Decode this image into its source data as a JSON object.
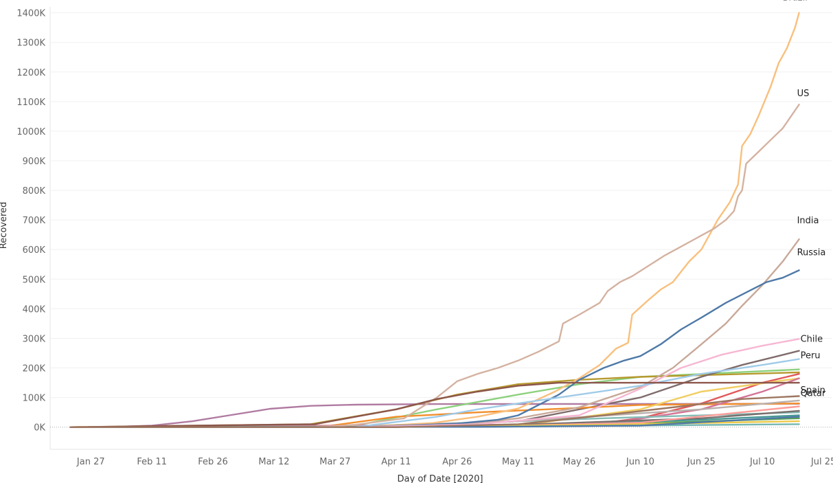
{
  "chart_data": {
    "type": "line",
    "title": "",
    "xlabel": "Day of Date [2020]",
    "ylabel": "Recovered",
    "x_ticks": [
      "Jan 27",
      "Feb 11",
      "Feb 26",
      "Mar 12",
      "Mar 27",
      "Apr 11",
      "Apr 26",
      "May 11",
      "May 26",
      "Jun 10",
      "Jun 25",
      "Jul 10",
      "Jul 25"
    ],
    "x_tick_dates": [
      "2020-01-27",
      "2020-02-11",
      "2020-02-26",
      "2020-03-12",
      "2020-03-27",
      "2020-04-11",
      "2020-04-26",
      "2020-05-11",
      "2020-05-26",
      "2020-06-10",
      "2020-06-25",
      "2020-07-10",
      "2020-07-25"
    ],
    "xlim": [
      "2020-01-17",
      "2020-07-27"
    ],
    "y_ticks": [
      "0K",
      "100K",
      "200K",
      "300K",
      "400K",
      "500K",
      "600K",
      "700K",
      "800K",
      "900K",
      "1000K",
      "1100K",
      "1200K",
      "1300K",
      "1400K"
    ],
    "ylim": [
      -75000,
      1420000
    ],
    "grid": true,
    "legend": "none",
    "series": [
      {
        "name": "Brazil",
        "color": "#f9bf7c",
        "end_label": true,
        "points": [
          [
            "2020-01-22",
            0
          ],
          [
            "2020-04-01",
            0
          ],
          [
            "2020-04-20",
            14000
          ],
          [
            "2020-05-01",
            35000
          ],
          [
            "2020-05-11",
            63000
          ],
          [
            "2020-05-20",
            120000
          ],
          [
            "2020-05-26",
            165000
          ],
          [
            "2020-05-31",
            210000
          ],
          [
            "2020-06-04",
            265000
          ],
          [
            "2020-06-07",
            285000
          ],
          [
            "2020-06-08",
            380000
          ],
          [
            "2020-06-12",
            430000
          ],
          [
            "2020-06-15",
            465000
          ],
          [
            "2020-06-18",
            490000
          ],
          [
            "2020-06-20",
            525000
          ],
          [
            "2020-06-22",
            560000
          ],
          [
            "2020-06-25",
            600000
          ],
          [
            "2020-06-27",
            650000
          ],
          [
            "2020-06-29",
            700000
          ],
          [
            "2020-07-02",
            760000
          ],
          [
            "2020-07-04",
            820000
          ],
          [
            "2020-07-05",
            950000
          ],
          [
            "2020-07-07",
            990000
          ],
          [
            "2020-07-09",
            1050000
          ],
          [
            "2020-07-12",
            1150000
          ],
          [
            "2020-07-14",
            1230000
          ],
          [
            "2020-07-16",
            1280000
          ],
          [
            "2020-07-18",
            1350000
          ],
          [
            "2020-07-19",
            1400000
          ]
        ]
      },
      {
        "name": "US",
        "color": "#d4b2a1",
        "end_label": true,
        "points": [
          [
            "2020-01-22",
            0
          ],
          [
            "2020-03-22",
            0
          ],
          [
            "2020-04-01",
            8000
          ],
          [
            "2020-04-13",
            30000
          ],
          [
            "2020-04-21",
            100000
          ],
          [
            "2020-04-26",
            155000
          ],
          [
            "2020-05-01",
            180000
          ],
          [
            "2020-05-06",
            200000
          ],
          [
            "2020-05-11",
            225000
          ],
          [
            "2020-05-16",
            255000
          ],
          [
            "2020-05-21",
            290000
          ],
          [
            "2020-05-22",
            350000
          ],
          [
            "2020-05-26",
            380000
          ],
          [
            "2020-05-31",
            420000
          ],
          [
            "2020-06-02",
            460000
          ],
          [
            "2020-06-05",
            490000
          ],
          [
            "2020-06-08",
            510000
          ],
          [
            "2020-06-12",
            545000
          ],
          [
            "2020-06-16",
            580000
          ],
          [
            "2020-06-20",
            610000
          ],
          [
            "2020-06-24",
            640000
          ],
          [
            "2020-06-28",
            670000
          ],
          [
            "2020-07-01",
            700000
          ],
          [
            "2020-07-03",
            730000
          ],
          [
            "2020-07-04",
            780000
          ],
          [
            "2020-07-05",
            800000
          ],
          [
            "2020-07-06",
            890000
          ],
          [
            "2020-07-09",
            930000
          ],
          [
            "2020-07-12",
            970000
          ],
          [
            "2020-07-15",
            1010000
          ],
          [
            "2020-07-17",
            1050000
          ],
          [
            "2020-07-19",
            1090000
          ]
        ]
      },
      {
        "name": "India",
        "color": "#c8a898",
        "end_label": true,
        "points": [
          [
            "2020-01-22",
            0
          ],
          [
            "2020-04-11",
            0
          ],
          [
            "2020-04-26",
            8000
          ],
          [
            "2020-05-11",
            30000
          ],
          [
            "2020-05-26",
            67000
          ],
          [
            "2020-06-10",
            135000
          ],
          [
            "2020-06-18",
            200000
          ],
          [
            "2020-06-25",
            280000
          ],
          [
            "2020-07-01",
            350000
          ],
          [
            "2020-07-05",
            410000
          ],
          [
            "2020-07-10",
            480000
          ],
          [
            "2020-07-15",
            560000
          ],
          [
            "2020-07-19",
            635000
          ]
        ]
      },
      {
        "name": "Russia",
        "color": "#4e79a7",
        "end_label": true,
        "points": [
          [
            "2020-01-22",
            0
          ],
          [
            "2020-04-01",
            0
          ],
          [
            "2020-04-26",
            12000
          ],
          [
            "2020-05-06",
            25000
          ],
          [
            "2020-05-11",
            40000
          ],
          [
            "2020-05-21",
            110000
          ],
          [
            "2020-05-26",
            160000
          ],
          [
            "2020-06-01",
            200000
          ],
          [
            "2020-06-06",
            225000
          ],
          [
            "2020-06-10",
            240000
          ],
          [
            "2020-06-15",
            280000
          ],
          [
            "2020-06-20",
            330000
          ],
          [
            "2020-06-25",
            370000
          ],
          [
            "2020-07-01",
            420000
          ],
          [
            "2020-07-06",
            455000
          ],
          [
            "2020-07-11",
            490000
          ],
          [
            "2020-07-15",
            505000
          ],
          [
            "2020-07-19",
            530000
          ]
        ]
      },
      {
        "name": "Chile",
        "color": "#f7b6d2",
        "end_label": true,
        "points": [
          [
            "2020-01-22",
            0
          ],
          [
            "2020-04-01",
            0
          ],
          [
            "2020-05-01",
            10000
          ],
          [
            "2020-05-26",
            40000
          ],
          [
            "2020-06-10",
            130000
          ],
          [
            "2020-06-20",
            200000
          ],
          [
            "2020-06-30",
            245000
          ],
          [
            "2020-07-10",
            275000
          ],
          [
            "2020-07-19",
            298000
          ]
        ]
      },
      {
        "name": "Peru",
        "color": "#a0cbe8",
        "end_label": true,
        "points": [
          [
            "2020-01-22",
            0
          ],
          [
            "2020-04-01",
            0
          ],
          [
            "2020-04-21",
            35000
          ],
          [
            "2020-05-01",
            60000
          ],
          [
            "2020-05-11",
            80000
          ],
          [
            "2020-05-26",
            110000
          ],
          [
            "2020-06-10",
            140000
          ],
          [
            "2020-06-25",
            180000
          ],
          [
            "2020-07-10",
            210000
          ],
          [
            "2020-07-19",
            230000
          ]
        ]
      },
      {
        "name": "Spain",
        "color": "#8c564b",
        "end_label": true,
        "points": [
          [
            "2020-01-22",
            0
          ],
          [
            "2020-03-22",
            10000
          ],
          [
            "2020-04-01",
            35000
          ],
          [
            "2020-04-11",
            60000
          ],
          [
            "2020-04-21",
            95000
          ],
          [
            "2020-05-01",
            120000
          ],
          [
            "2020-05-11",
            140000
          ],
          [
            "2020-05-21",
            150000
          ],
          [
            "2020-06-01",
            150000
          ],
          [
            "2020-07-19",
            150000
          ]
        ]
      },
      {
        "name": "Qatar",
        "color": "#9d7660",
        "end_label": true,
        "points": [
          [
            "2020-01-22",
            0
          ],
          [
            "2020-04-11",
            0
          ],
          [
            "2020-05-11",
            10000
          ],
          [
            "2020-06-01",
            40000
          ],
          [
            "2020-06-20",
            70000
          ],
          [
            "2020-07-05",
            95000
          ],
          [
            "2020-07-19",
            105000
          ]
        ]
      },
      {
        "name": "",
        "color": "#b07aa1",
        "end_label": false,
        "points": [
          [
            "2020-01-22",
            0
          ],
          [
            "2020-02-01",
            1000
          ],
          [
            "2020-02-11",
            5000
          ],
          [
            "2020-02-21",
            20000
          ],
          [
            "2020-03-01",
            40000
          ],
          [
            "2020-03-11",
            62000
          ],
          [
            "2020-03-21",
            72000
          ],
          [
            "2020-04-01",
            76000
          ],
          [
            "2020-04-21",
            78000
          ],
          [
            "2020-07-19",
            79000
          ]
        ]
      },
      {
        "name": "",
        "color": "#8cd17d",
        "end_label": false,
        "points": [
          [
            "2020-01-22",
            0
          ],
          [
            "2020-04-01",
            5000
          ],
          [
            "2020-04-21",
            60000
          ],
          [
            "2020-05-11",
            110000
          ],
          [
            "2020-05-26",
            145000
          ],
          [
            "2020-06-10",
            170000
          ],
          [
            "2020-07-19",
            195000
          ]
        ]
      },
      {
        "name": "",
        "color": "#b6992d",
        "end_label": false,
        "points": [
          [
            "2020-01-22",
            0
          ],
          [
            "2020-03-21",
            10000
          ],
          [
            "2020-04-11",
            60000
          ],
          [
            "2020-04-26",
            110000
          ],
          [
            "2020-05-11",
            145000
          ],
          [
            "2020-05-26",
            160000
          ],
          [
            "2020-06-10",
            170000
          ],
          [
            "2020-07-19",
            185000
          ]
        ]
      },
      {
        "name": "",
        "color": "#7f6b6b",
        "end_label": false,
        "points": [
          [
            "2020-01-22",
            0
          ],
          [
            "2020-04-11",
            0
          ],
          [
            "2020-05-11",
            20000
          ],
          [
            "2020-06-10",
            100000
          ],
          [
            "2020-06-25",
            170000
          ],
          [
            "2020-07-05",
            210000
          ],
          [
            "2020-07-19",
            258000
          ]
        ]
      },
      {
        "name": "",
        "color": "#f28e2b",
        "end_label": false,
        "points": [
          [
            "2020-01-22",
            0
          ],
          [
            "2020-03-26",
            5000
          ],
          [
            "2020-04-11",
            35000
          ],
          [
            "2020-05-01",
            50000
          ],
          [
            "2020-05-26",
            65000
          ],
          [
            "2020-06-10",
            75000
          ],
          [
            "2020-07-19",
            80000
          ]
        ]
      },
      {
        "name": "",
        "color": "#e15759",
        "end_label": false,
        "points": [
          [
            "2020-01-22",
            0
          ],
          [
            "2020-05-26",
            5000
          ],
          [
            "2020-06-10",
            30000
          ],
          [
            "2020-06-25",
            80000
          ],
          [
            "2020-07-10",
            150000
          ],
          [
            "2020-07-19",
            180000
          ]
        ]
      },
      {
        "name": "",
        "color": "#f1ce63",
        "end_label": false,
        "points": [
          [
            "2020-01-22",
            0
          ],
          [
            "2020-05-11",
            5000
          ],
          [
            "2020-06-10",
            60000
          ],
          [
            "2020-06-25",
            120000
          ],
          [
            "2020-07-19",
            165000
          ]
        ]
      },
      {
        "name": "",
        "color": "#d37295",
        "end_label": false,
        "points": [
          [
            "2020-01-22",
            0
          ],
          [
            "2020-06-01",
            10000
          ],
          [
            "2020-06-25",
            60000
          ],
          [
            "2020-07-10",
            120000
          ],
          [
            "2020-07-19",
            165000
          ]
        ]
      },
      {
        "name": "",
        "color": "#86bcb6",
        "end_label": false,
        "points": [
          [
            "2020-01-22",
            0
          ],
          [
            "2020-04-01",
            2000
          ],
          [
            "2020-05-01",
            15000
          ],
          [
            "2020-06-01",
            30000
          ],
          [
            "2020-07-19",
            50000
          ]
        ]
      },
      {
        "name": "",
        "color": "#499894",
        "end_label": false,
        "points": [
          [
            "2020-01-22",
            0
          ],
          [
            "2020-04-11",
            2000
          ],
          [
            "2020-05-26",
            10000
          ],
          [
            "2020-06-25",
            25000
          ],
          [
            "2020-07-19",
            40000
          ]
        ]
      },
      {
        "name": "",
        "color": "#59a14f",
        "end_label": false,
        "points": [
          [
            "2020-01-22",
            0
          ],
          [
            "2020-04-11",
            2000
          ],
          [
            "2020-06-10",
            12000
          ],
          [
            "2020-07-19",
            30000
          ]
        ]
      },
      {
        "name": "",
        "color": "#79706e",
        "end_label": false,
        "points": [
          [
            "2020-01-22",
            0
          ],
          [
            "2020-04-01",
            0
          ],
          [
            "2020-05-11",
            8000
          ],
          [
            "2020-06-25",
            30000
          ],
          [
            "2020-07-19",
            55000
          ]
        ]
      },
      {
        "name": "",
        "color": "#ff9d9a",
        "end_label": false,
        "points": [
          [
            "2020-01-22",
            0
          ],
          [
            "2020-05-01",
            2000
          ],
          [
            "2020-06-10",
            15000
          ],
          [
            "2020-07-19",
            70000
          ]
        ]
      },
      {
        "name": "",
        "color": "#bab0ac",
        "end_label": false,
        "points": [
          [
            "2020-01-22",
            0
          ],
          [
            "2020-04-01",
            3000
          ],
          [
            "2020-05-11",
            20000
          ],
          [
            "2020-06-25",
            60000
          ],
          [
            "2020-07-19",
            90000
          ]
        ]
      },
      {
        "name": "",
        "color": "#edc948",
        "end_label": false,
        "points": [
          [
            "2020-01-22",
            0
          ],
          [
            "2020-04-11",
            1000
          ],
          [
            "2020-06-01",
            8000
          ],
          [
            "2020-07-19",
            20000
          ]
        ]
      },
      {
        "name": "",
        "color": "#76b7b2",
        "end_label": false,
        "points": [
          [
            "2020-01-22",
            0
          ],
          [
            "2020-05-01",
            1000
          ],
          [
            "2020-07-19",
            10000
          ]
        ]
      },
      {
        "name": "",
        "color": "#4e79a7",
        "end_label": false,
        "points": [
          [
            "2020-01-22",
            0
          ],
          [
            "2020-05-01",
            1000
          ],
          [
            "2020-06-10",
            5000
          ],
          [
            "2020-07-19",
            35000
          ]
        ]
      }
    ]
  }
}
